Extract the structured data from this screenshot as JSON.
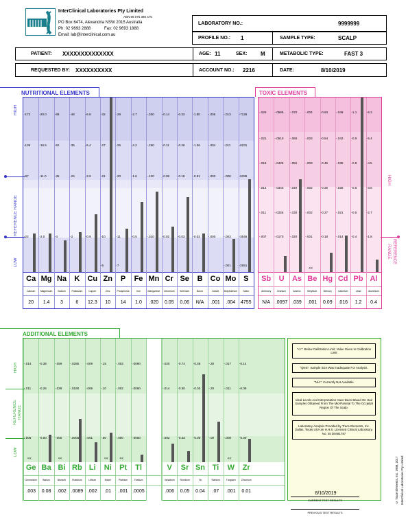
{
  "lab": {
    "name": "InterClinical Laboratories Pty Limited",
    "abn": "ABN 89 076 386 475",
    "address": "PO Box 6474, Alexandria NSW 2015 Australia",
    "phone": "Ph: 02 9693 2888",
    "fax": "Fax: 02 9693 1888",
    "email": "Email: lab@interclinical.com.au"
  },
  "header": {
    "lab_no_label": "LABORATORY NO.:",
    "lab_no": "9999999",
    "profile_no_label": "PROFILE NO.:",
    "profile_no": "1",
    "sample_type_label": "SAMPLE TYPE:",
    "sample_type": "SCALP",
    "patient_label": "PATIENT:",
    "patient": "XXXXXXXXXXXXXX",
    "age_label": "AGE:",
    "age": "11",
    "sex_label": "SEX:",
    "sex": "M",
    "metabolic_label": "METABOLIC TYPE:",
    "metabolic": "FAST 3",
    "requested_label": "REQUESTED BY:",
    "requested": "XXXXXXXXXX",
    "account_label": "ACCOUNT NO.:",
    "account": "2216",
    "date_label": "DATE:",
    "date": "8/10/2019"
  },
  "sections": {
    "nutritional": "NUTRITIONAL ELEMENTS",
    "toxic": "TOXIC ELEMENTS",
    "additional": "ADDITIONAL ELEMENTS"
  },
  "axis": {
    "high": "HIGH",
    "reference_range": "REFERENCE RANGE",
    "low": "LOW",
    "reference_l1": "REFERENCE",
    "reference_l2": "RANGE"
  },
  "colors": {
    "nutritional": "#3333cc",
    "toxic": "#e0399a",
    "additional": "#33aa33"
  },
  "nutritional": {
    "symbols": [
      "Ca",
      "Mg",
      "Na",
      "K",
      "Cu",
      "Zn",
      "P",
      "Fe",
      "Mn",
      "Cr",
      "Se",
      "B",
      "Co",
      "Mo",
      "S"
    ],
    "names": [
      "Calcium",
      "Magnesium",
      "Sodium",
      "Potassium",
      "Copper",
      "Zinc",
      "Phosphorus",
      "Iron",
      "Manganese",
      "Chromium",
      "Selenium",
      "Boron",
      "Cobalt",
      "Molybdenum",
      "Sulfur"
    ],
    "results": [
      "20",
      "1.4",
      "3",
      "6",
      "12.3",
      "10",
      "14",
      "1.0",
      ".020",
      "0.05",
      "0.06",
      "N/A",
      ".001",
      ".004",
      "4755"
    ],
    "levels": [
      0.22,
      0.22,
      0.18,
      0.23,
      0.33,
      1.0,
      0.25,
      0.4,
      0.46,
      0.26,
      0.43,
      0.22,
      0,
      0.19,
      0.53
    ],
    "ticks": [
      [
        "172",
        "135",
        "97",
        "22"
      ],
      [
        "20.0",
        "15.5",
        "11.0",
        "2.0"
      ],
      [
        "68",
        "52",
        "36",
        "4"
      ],
      [
        "48",
        "35",
        "24",
        "2"
      ],
      [
        "6.9",
        "5.4",
        "3.9",
        "0.9"
      ],
      [
        "32",
        "27",
        "21",
        "10",
        "5"
      ],
      [
        "29",
        "25",
        "20",
        "11",
        "7"
      ],
      [
        "2.7",
        "2.2",
        "1.6",
        "0.5"
      ],
      [
        ".250",
        ".190",
        ".130",
        ".010"
      ],
      [
        "0.14",
        "0.11",
        "0.08",
        "0.02"
      ],
      [
        "0.33",
        "0.26",
        "0.18",
        "0.03"
      ],
      [
        "1.80",
        "1.36",
        "0.91",
        "0.02"
      ],
      [
        ".005",
        ".004",
        ".003",
        ".000"
      ],
      [
        ".013",
        ".011",
        ".008",
        ".003",
        ".001"
      ],
      [
        "7126",
        "6231",
        "5336",
        "3546",
        "2651"
      ]
    ]
  },
  "toxic": {
    "symbols": [
      "Sb",
      "U",
      "As",
      "Be",
      "Hg",
      "Cd",
      "Pb",
      "Al"
    ],
    "names": [
      "Antimony",
      "Uranium",
      "Arsenic",
      "Beryllium",
      "Mercury",
      "Cadmium",
      "Lead",
      "Aluminium"
    ],
    "results": [
      "N/A",
      ".0097",
      ".039",
      ".001",
      "0.09",
      ".016",
      "1.2",
      "0.4"
    ],
    "levels": [
      0,
      0.09,
      0.53,
      0,
      0.11,
      0.21,
      1.0,
      0.07
    ],
    "below_marks": [
      "",
      "",
      "",
      "<<",
      "",
      "",
      "",
      ""
    ],
    "ticks": [
      [
        ".025",
        ".021",
        ".018",
        ".014",
        ".011",
        ".007"
      ],
      [
        ".0595",
        ".0510",
        ".0425",
        ".0340",
        ".0255",
        ".0170"
      ],
      [
        ".070",
        ".060",
        ".050",
        ".040",
        ".030",
        ".020"
      ],
      [
        ".004",
        ".003",
        ".003",
        ".002",
        ".002",
        ".001"
      ],
      [
        "0.63",
        "0.54",
        "0.45",
        "0.36",
        "0.27",
        "0.18"
      ],
      [
        ".049",
        ".042",
        ".035",
        ".028",
        ".021",
        ".014"
      ],
      [
        "1.1",
        "0.9",
        "0.8",
        "0.6",
        "0.5",
        "0.4"
      ],
      [
        "6.3",
        "5.4",
        "4.5",
        "3.6",
        "2.7",
        "1.8"
      ]
    ]
  },
  "additional": {
    "symbols": [
      "Ge",
      "Ba",
      "Bi",
      "Rb",
      "Li",
      "Ni",
      "Pt",
      "Tl",
      "V",
      "Sr",
      "Sn",
      "Ti",
      "W",
      "Zr"
    ],
    "names": [
      "Germanium",
      "Barium",
      "Bismuth",
      "Rubidium",
      "Lithium",
      "Nickel",
      "Platinum",
      "Thallium",
      "Vanadium",
      "Strontium",
      "Tin",
      "Titanium",
      "Tungsten",
      "Zirconium"
    ],
    "results": [
      ".003",
      "0.08",
      ".002",
      ".0089",
      ".002",
      ".01",
      ".001",
      ".0005",
      ".006",
      "0.05",
      "0.04",
      ".07",
      ".001",
      "0.01"
    ],
    "levels": [
      0,
      0.22,
      0,
      0.35,
      0.16,
      0.24,
      0,
      0.06,
      0.15,
      0.09,
      0.71,
      0.33,
      0,
      0.19
    ],
    "below_marks": [
      "<<",
      "",
      "<<",
      "",
      "",
      "<<",
      "<<",
      "",
      "",
      "",
      "",
      "",
      "<<",
      ""
    ],
    "ticks": [
      [
        ".014",
        ".011",
        ".006"
      ],
      [
        "0.39",
        "0.26",
        "0.00"
      ],
      [
        ".059",
        ".039",
        ".000"
      ],
      [
        ".0285",
        ".0190",
        ".0000"
      ],
      [
        ".009",
        ".006",
        ".001"
      ],
      [
        ".15",
        ".10",
        ".00"
      ],
      [
        ".003",
        ".002",
        ".000"
      ],
      [
        ".0090",
        ".0060",
        ".0000"
      ],
      [
        ".020",
        ".014",
        ".002"
      ],
      [
        "0.74",
        "0.50",
        "0.03"
      ],
      [
        "0.05",
        "0.03",
        "0.00"
      ],
      [
        ".30",
        ".20",
        ".00"
      ],
      [
        ".017",
        ".011",
        ".000"
      ],
      [
        "0.14",
        "0.09",
        "0.00"
      ]
    ]
  },
  "notes": [
    "\"<<\": Below Calibration Limit, Value Given Is Calibration Limit",
    "\"QNS\": Sample Size Was Inadequate For Analysis.",
    "\"N/A\": Currently Not Available",
    "Ideal Levels And Interpretation Have Been Based On Hair Samples Obtained From The Mid-Parietal To The Occipital Region Of The Scalp.",
    "Laboratory Analysis Provided by Trace Elements, Inc. Dallas, Texas USA an H.H.S. Licensed Clinical Laboratory. No. 45 D0481787"
  ],
  "footer": {
    "current_date": "8/10/2019",
    "current_label": "CURRENT TEST RESULTS",
    "previous_label": "PREVIOUS TEST RESULTS",
    "copyright": "© Trace Elements, Inc. 1998, 2017",
    "copyright2": "InterClinical Laboratories Pty Limited"
  }
}
